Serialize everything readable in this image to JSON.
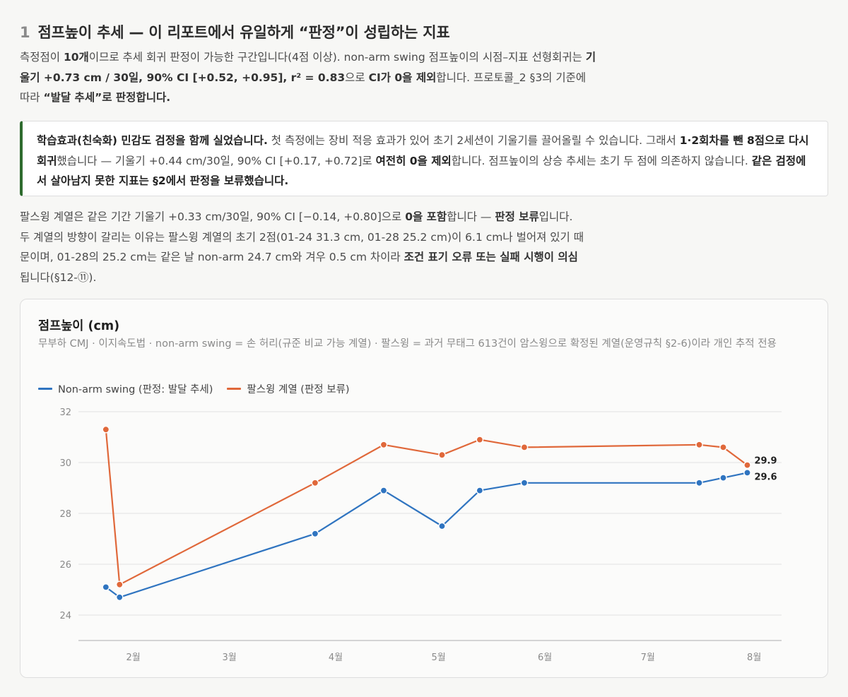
{
  "section": {
    "number": "1",
    "title": "점프높이 추세 — 이 리포트에서 유일하게 “판정”이 성립하는 지표"
  },
  "paragraph1": {
    "t1": "측정점이 ",
    "b1": "10개",
    "t2": "이므로 추세 회귀 판정이 가능한 구간입니다(4점 이상). non-arm swing 점프높이의 시점–지표 선형회귀는 ",
    "b2": "기울기 +0.73 cm / 30일, 90% CI [+0.52, +0.95], r² = 0.83",
    "t3": "으로 ",
    "b3": "CI가 0을 제외",
    "t4": "합니다. 프로토콜_2 §3의 기준에 따라 ",
    "b4": "“발달 추세”로 판정합니다."
  },
  "callout": {
    "b1": "학습효과(친숙화) 민감도 검정을 함께 실었습니다.",
    "t1": " 첫 측정에는 장비 적응 효과가 있어 초기 2세션이 기울기를 끌어올릴 수 있습니다. 그래서 ",
    "b2": "1·2회차를 뺀 8점으로 다시 회귀",
    "t2": "했습니다 — 기울기 +0.44 cm/30일, 90% CI [+0.17, +0.72]로 ",
    "b3": "여전히 0을 제외",
    "t3": "합니다. 점프높이의 상승 추세는 초기 두 점에 의존하지 않습니다. ",
    "b4": "같은 검정에서 살아남지 못한 지표는 §2에서 판정을 보류했습니다."
  },
  "paragraph2": {
    "t1": "팔스윙 계열은 같은 기간 기울기 +0.33 cm/30일, 90% CI [−0.14, +0.80]으로 ",
    "b1": "0을 포함",
    "t2": "합니다 — ",
    "b2": "판정 보류",
    "t3": "입니다. 두 계열의 방향이 갈리는 이유는 팔스윙 계열의 초기 2점(01-24 31.3 cm, 01-28 25.2 cm)이 6.1 cm나 벌어져 있기 때문이며, 01-28의 25.2 cm는 같은 날 non-arm 24.7 cm와 겨우 0.5 cm 차이라 ",
    "b3": "조건 표기 오류 또는 실패 시행이 의심",
    "t4": "됩니다(§12-⑪)."
  },
  "chart_card": {
    "title": "점프높이 (cm)",
    "subtitle": "무부하 CMJ · 이지속도법 · non-arm swing = 손 허리(규준 비교 가능 계열) · 팔스윙 = 과거 무태그 613건이 암스윙으로 확정된 계열(운영규칙 §2-6)이라 개인 추적 전용"
  },
  "chart_data": {
    "type": "line",
    "x_type": "date",
    "x_ticks": [
      {
        "date": "2025-02-01",
        "label": "2월"
      },
      {
        "date": "2025-03-01",
        "label": "3월"
      },
      {
        "date": "2025-04-01",
        "label": "4월"
      },
      {
        "date": "2025-05-01",
        "label": "5월"
      },
      {
        "date": "2025-06-01",
        "label": "6월"
      },
      {
        "date": "2025-07-01",
        "label": "7월"
      },
      {
        "date": "2025-08-01",
        "label": "8월"
      }
    ],
    "x_range": [
      "2025-01-16",
      "2025-08-09"
    ],
    "ylim": [
      23,
      32
    ],
    "y_ticks": [
      24,
      26,
      28,
      30,
      32
    ],
    "grid": true,
    "legend_position": "top-left",
    "series": [
      {
        "name": "Non-arm swing (판정: 발달 추세)",
        "color": "#2f74c0",
        "end_label": "29.6",
        "points": [
          {
            "x": "2025-01-24",
            "y": 25.1
          },
          {
            "x": "2025-01-28",
            "y": 24.7
          },
          {
            "x": "2025-03-26",
            "y": 27.2
          },
          {
            "x": "2025-04-15",
            "y": 28.9
          },
          {
            "x": "2025-05-02",
            "y": 27.5
          },
          {
            "x": "2025-05-13",
            "y": 28.9
          },
          {
            "x": "2025-05-26",
            "y": 29.2
          },
          {
            "x": "2025-07-16",
            "y": 29.2
          },
          {
            "x": "2025-07-23",
            "y": 29.4
          },
          {
            "x": "2025-07-30",
            "y": 29.6
          }
        ]
      },
      {
        "name": "팔스윙 계열 (판정 보류)",
        "color": "#e0683a",
        "end_label": "29.9",
        "points": [
          {
            "x": "2025-01-24",
            "y": 31.3
          },
          {
            "x": "2025-01-28",
            "y": 25.2
          },
          {
            "x": "2025-03-26",
            "y": 29.2
          },
          {
            "x": "2025-04-15",
            "y": 30.7
          },
          {
            "x": "2025-05-02",
            "y": 30.3
          },
          {
            "x": "2025-05-13",
            "y": 30.9
          },
          {
            "x": "2025-05-26",
            "y": 30.6
          },
          {
            "x": "2025-07-16",
            "y": 30.7
          },
          {
            "x": "2025-07-23",
            "y": 30.6
          },
          {
            "x": "2025-07-30",
            "y": 29.9
          }
        ]
      }
    ]
  }
}
